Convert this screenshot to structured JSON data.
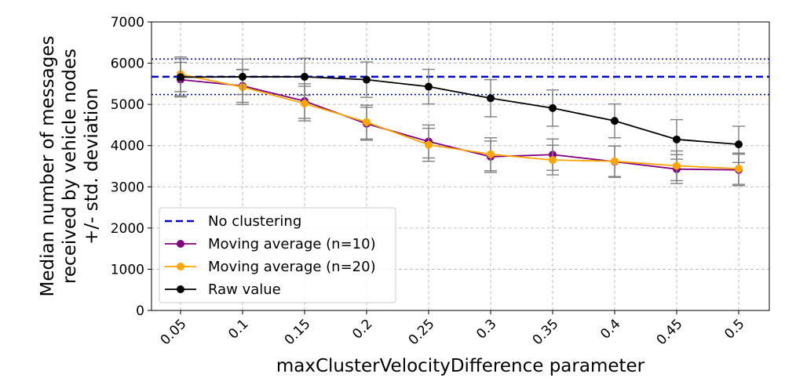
{
  "chart_data": {
    "type": "line",
    "xlabel": "maxClusterVelocityDifference parameter",
    "ylabel_lines": [
      "Median number of messages",
      "received by vehicle nodes",
      "+/- std. deviation"
    ],
    "categories": [
      "0.05",
      "0.1",
      "0.15",
      "0.2",
      "0.25",
      "0.3",
      "0.35",
      "0.4",
      "0.45",
      "0.5"
    ],
    "ylim": [
      0,
      7000
    ],
    "yticks": [
      0,
      1000,
      2000,
      3000,
      4000,
      5000,
      6000,
      7000
    ],
    "grid": true,
    "legend_position": "lower-left",
    "baseline": {
      "name": "No clustering",
      "value": 5670,
      "std": 430,
      "color": "#0000cc"
    },
    "series": [
      {
        "name": "Moving average (n=10)",
        "color": "#800080",
        "values": [
          5600,
          5450,
          5080,
          4530,
          4100,
          3730,
          3780,
          3610,
          3430,
          3410
        ],
        "std": [
          420,
          400,
          420,
          400,
          400,
          380,
          380,
          380,
          350,
          380
        ]
      },
      {
        "name": "Moving average (n=20)",
        "color": "#ffa500",
        "values": [
          5730,
          5420,
          5020,
          4570,
          4020,
          3790,
          3650,
          3620,
          3510,
          3440
        ],
        "std": [
          420,
          420,
          420,
          410,
          400,
          400,
          360,
          370,
          360,
          380
        ]
      },
      {
        "name": "Raw value",
        "color": "#000000",
        "values": [
          5660,
          5670,
          5670,
          5600,
          5430,
          5150,
          4910,
          4600,
          4150,
          4030
        ],
        "std": [
          450,
          430,
          450,
          430,
          420,
          450,
          440,
          410,
          480,
          440
        ]
      }
    ]
  }
}
